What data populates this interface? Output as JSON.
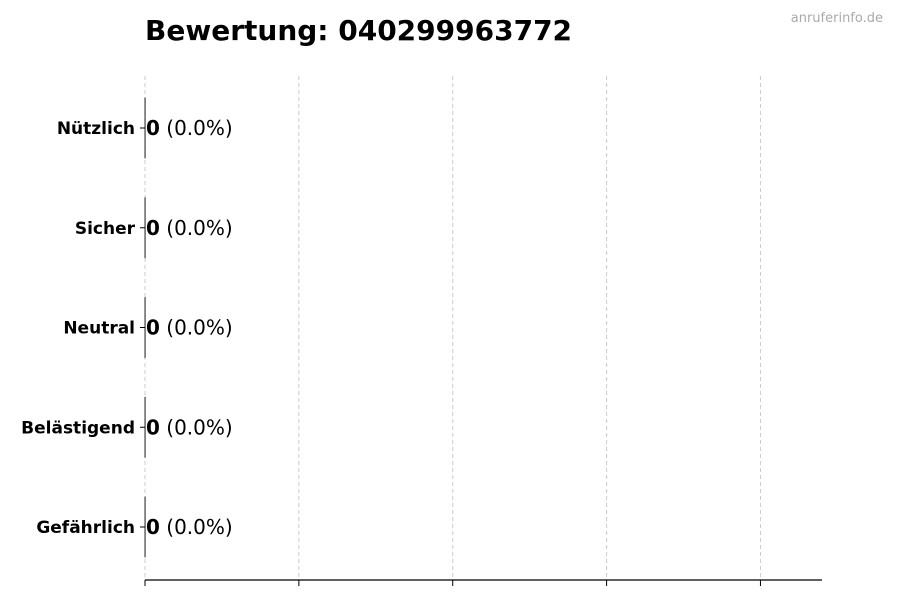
{
  "chart_data": {
    "type": "bar",
    "orientation": "horizontal",
    "title": "Bewertung: 040299963772",
    "watermark": "anruferinfo.de",
    "categories": [
      "Nützlich",
      "Sicher",
      "Neutral",
      "Belästigend",
      "Gefährlich"
    ],
    "values": [
      0,
      0,
      0,
      0,
      0
    ],
    "labels": [
      {
        "count": "0",
        "percent": "(0.0%)"
      },
      {
        "count": "0",
        "percent": "(0.0%)"
      },
      {
        "count": "0",
        "percent": "(0.0%)"
      },
      {
        "count": "0",
        "percent": "(0.0%)"
      },
      {
        "count": "0",
        "percent": "(0.0%)"
      }
    ],
    "xlim": [
      0,
      4.4
    ],
    "xticks": [
      0,
      1,
      2,
      3,
      4
    ],
    "xtick_labels_shown": false,
    "grid": "vertical dashed",
    "colors": {
      "text": "#000000",
      "grid": "#cccccc",
      "watermark": "#aaaaaa",
      "bar_edge": "#000000"
    }
  }
}
